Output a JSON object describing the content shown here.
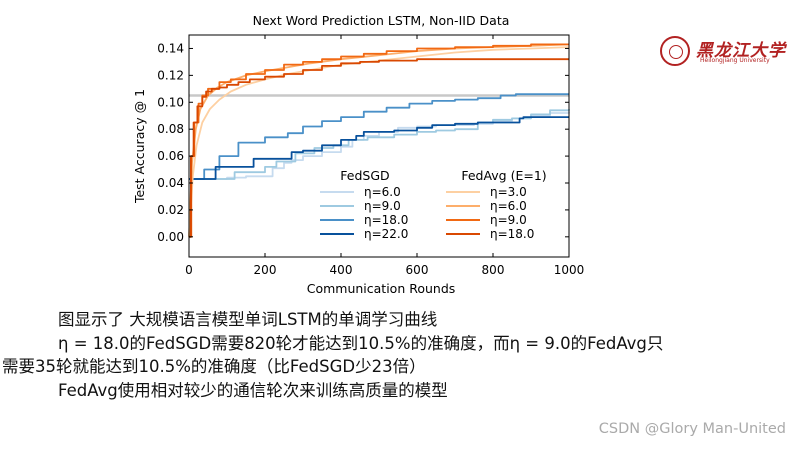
{
  "logo": {
    "name_cn": "黑龙江大学",
    "name_en": "Heilongjiang University"
  },
  "chart_data": {
    "type": "line",
    "title": "Next Word Prediction LSTM, Non-IID Data",
    "xlabel": "Communication Rounds",
    "ylabel": "Test Accuracy @ 1",
    "xlim": [
      0,
      1000
    ],
    "ylim": [
      -0.015,
      0.15
    ],
    "xticks": [
      "0",
      "200",
      "400",
      "600",
      "800",
      "1000"
    ],
    "yticks": [
      "0.00",
      "0.02",
      "0.04",
      "0.06",
      "0.08",
      "0.10",
      "0.12",
      "0.14"
    ],
    "grid": false,
    "reference_line": {
      "y": 0.105,
      "color": "#c8c8c8"
    },
    "legend_groups": [
      {
        "title": "FedSGD",
        "position": "bottom-center"
      },
      {
        "title": "FedAvg (E=1)",
        "position": "bottom-right"
      }
    ],
    "series": [
      {
        "name": "η=6.0",
        "group": "FedSGD",
        "color": "#c6dbef",
        "step": true,
        "points": [
          [
            0,
            0.043
          ],
          [
            50,
            0.043
          ],
          [
            100,
            0.044
          ],
          [
            150,
            0.045
          ],
          [
            200,
            0.045
          ],
          [
            220,
            0.051
          ],
          [
            250,
            0.055
          ],
          [
            270,
            0.057
          ],
          [
            300,
            0.06
          ],
          [
            350,
            0.063
          ],
          [
            400,
            0.067
          ],
          [
            430,
            0.072
          ],
          [
            460,
            0.075
          ],
          [
            500,
            0.078
          ],
          [
            550,
            0.081
          ],
          [
            600,
            0.082
          ],
          [
            650,
            0.083
          ],
          [
            700,
            0.083
          ],
          [
            750,
            0.084
          ],
          [
            800,
            0.086
          ],
          [
            850,
            0.088
          ],
          [
            900,
            0.09
          ],
          [
            950,
            0.092
          ],
          [
            1000,
            0.093
          ]
        ]
      },
      {
        "name": "η=9.0",
        "group": "FedSGD",
        "color": "#9ecae1",
        "step": true,
        "points": [
          [
            0,
            0.043
          ],
          [
            80,
            0.043
          ],
          [
            120,
            0.048
          ],
          [
            200,
            0.052
          ],
          [
            230,
            0.056
          ],
          [
            280,
            0.062
          ],
          [
            330,
            0.066
          ],
          [
            380,
            0.068
          ],
          [
            420,
            0.072
          ],
          [
            470,
            0.074
          ],
          [
            540,
            0.076
          ],
          [
            600,
            0.078
          ],
          [
            650,
            0.079
          ],
          [
            700,
            0.08
          ],
          [
            760,
            0.085
          ],
          [
            800,
            0.087
          ],
          [
            850,
            0.088
          ],
          [
            900,
            0.091
          ],
          [
            950,
            0.094
          ],
          [
            1000,
            0.095
          ]
        ]
      },
      {
        "name": "η=18.0",
        "group": "FedSGD",
        "color": "#4a90c8",
        "step": true,
        "points": [
          [
            0,
            0.043
          ],
          [
            40,
            0.05
          ],
          [
            80,
            0.06
          ],
          [
            130,
            0.07
          ],
          [
            200,
            0.074
          ],
          [
            260,
            0.077
          ],
          [
            300,
            0.082
          ],
          [
            350,
            0.086
          ],
          [
            400,
            0.089
          ],
          [
            460,
            0.093
          ],
          [
            520,
            0.096
          ],
          [
            580,
            0.099
          ],
          [
            640,
            0.101
          ],
          [
            700,
            0.102
          ],
          [
            760,
            0.103
          ],
          [
            820,
            0.105
          ],
          [
            860,
            0.106
          ],
          [
            1000,
            0.106
          ]
        ]
      },
      {
        "name": "η=22.0",
        "group": "FedSGD",
        "color": "#08519c",
        "step": true,
        "points": [
          [
            0,
            0.043
          ],
          [
            40,
            0.043
          ],
          [
            70,
            0.052
          ],
          [
            160,
            0.052
          ],
          [
            170,
            0.058
          ],
          [
            230,
            0.058
          ],
          [
            270,
            0.063
          ],
          [
            300,
            0.064
          ],
          [
            350,
            0.068
          ],
          [
            400,
            0.072
          ],
          [
            440,
            0.075
          ],
          [
            460,
            0.078
          ],
          [
            520,
            0.078
          ],
          [
            540,
            0.079
          ],
          [
            600,
            0.081
          ],
          [
            640,
            0.083
          ],
          [
            700,
            0.084
          ],
          [
            760,
            0.085
          ],
          [
            820,
            0.085
          ],
          [
            870,
            0.088
          ],
          [
            880,
            0.089
          ],
          [
            1000,
            0.089
          ]
        ]
      },
      {
        "name": "η=3.0",
        "group": "FedAvg (E=1)",
        "color": "#fdd0a2",
        "step": false,
        "points": [
          [
            0,
            0.0
          ],
          [
            10,
            0.045
          ],
          [
            20,
            0.068
          ],
          [
            35,
            0.085
          ],
          [
            55,
            0.095
          ],
          [
            80,
            0.102
          ],
          [
            110,
            0.108
          ],
          [
            150,
            0.113
          ],
          [
            200,
            0.117
          ],
          [
            260,
            0.121
          ],
          [
            320,
            0.124
          ],
          [
            400,
            0.128
          ],
          [
            500,
            0.131
          ],
          [
            600,
            0.134
          ],
          [
            700,
            0.137
          ],
          [
            800,
            0.139
          ],
          [
            900,
            0.14
          ],
          [
            1000,
            0.141
          ]
        ]
      },
      {
        "name": "η=6.0",
        "group": "FedAvg (E=1)",
        "color": "#fdae6b",
        "step": false,
        "points": [
          [
            0,
            0.0
          ],
          [
            8,
            0.055
          ],
          [
            18,
            0.08
          ],
          [
            30,
            0.095
          ],
          [
            50,
            0.105
          ],
          [
            75,
            0.111
          ],
          [
            100,
            0.115
          ],
          [
            150,
            0.12
          ],
          [
            200,
            0.123
          ],
          [
            260,
            0.126
          ],
          [
            320,
            0.129
          ],
          [
            400,
            0.132
          ],
          [
            500,
            0.135
          ],
          [
            600,
            0.138
          ],
          [
            700,
            0.14
          ],
          [
            800,
            0.141
          ],
          [
            900,
            0.142
          ],
          [
            1000,
            0.143
          ]
        ]
      },
      {
        "name": "η=9.0",
        "group": "FedAvg (E=1)",
        "color": "#f16913",
        "step": true,
        "points": [
          [
            0,
            0.0
          ],
          [
            6,
            0.06
          ],
          [
            14,
            0.085
          ],
          [
            25,
            0.099
          ],
          [
            35,
            0.105
          ],
          [
            50,
            0.11
          ],
          [
            80,
            0.115
          ],
          [
            110,
            0.117
          ],
          [
            150,
            0.121
          ],
          [
            200,
            0.124
          ],
          [
            250,
            0.128
          ],
          [
            300,
            0.13
          ],
          [
            350,
            0.132
          ],
          [
            400,
            0.134
          ],
          [
            460,
            0.136
          ],
          [
            520,
            0.138
          ],
          [
            600,
            0.14
          ],
          [
            700,
            0.141
          ],
          [
            800,
            0.142
          ],
          [
            900,
            0.143
          ],
          [
            1000,
            0.143
          ]
        ]
      },
      {
        "name": "η=18.0",
        "group": "FedAvg (E=1)",
        "color": "#d94801",
        "step": true,
        "points": [
          [
            0,
            0.0
          ],
          [
            5,
            0.06
          ],
          [
            12,
            0.085
          ],
          [
            22,
            0.097
          ],
          [
            35,
            0.104
          ],
          [
            45,
            0.108
          ],
          [
            60,
            0.11
          ],
          [
            80,
            0.111
          ],
          [
            100,
            0.113
          ],
          [
            130,
            0.115
          ],
          [
            160,
            0.117
          ],
          [
            200,
            0.119
          ],
          [
            250,
            0.121
          ],
          [
            300,
            0.124
          ],
          [
            350,
            0.127
          ],
          [
            400,
            0.129
          ],
          [
            450,
            0.13
          ],
          [
            500,
            0.131
          ],
          [
            600,
            0.132
          ],
          [
            1000,
            0.132
          ]
        ]
      }
    ]
  },
  "caption": {
    "line1": "图显示了 大规模语言模型单词LSTM的单调学习曲线",
    "line2": "η = 18.0的FedSGD需要820轮才能达到10.5%的准确度，而η = 9.0的FedAvg只",
    "line3": "需要35轮就能达到10.5%的准确度（比FedSGD少23倍）",
    "line4": "FedAvg使用相对较少的通信轮次来训练高质量的模型"
  },
  "watermark": "CSDN @Glory Man-United"
}
